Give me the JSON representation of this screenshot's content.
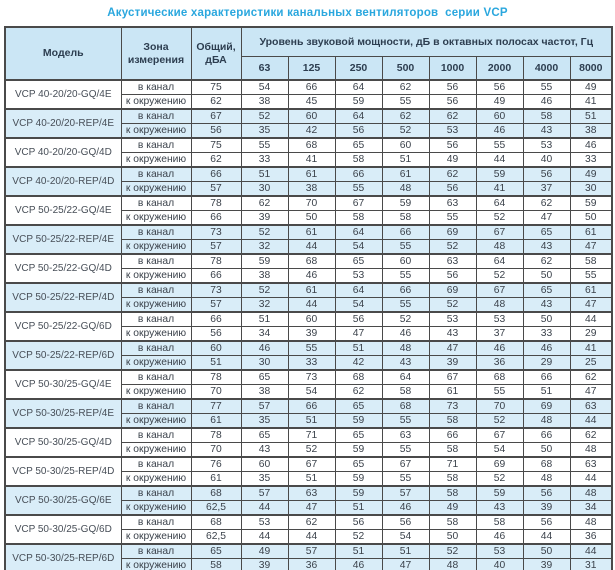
{
  "title": "Акустические характеристики канальных вентиляторов  серии VCP",
  "colors": {
    "title": "#2aa7de",
    "header_bg": "#cbe6f5",
    "highlight_row_bg": "#d9edf8",
    "border": "#4a4a4a"
  },
  "table": {
    "headers": {
      "model": "Модель",
      "zone": "Зона\nизмерения",
      "total": "Общий,\nдБА",
      "band_group": "Уровень звуковой мощности, дБ в октавных полосах частот, Гц",
      "frequencies": [
        "63",
        "125",
        "250",
        "500",
        "1000",
        "2000",
        "4000",
        "8000"
      ]
    },
    "zone_labels": {
      "duct": "в канал",
      "ambient": "к окружению"
    },
    "rows": [
      {
        "model": "VCP 40-20/20-GQ/4E",
        "highlight": false,
        "duct": {
          "total": "75",
          "bands": [
            "54",
            "66",
            "64",
            "62",
            "56",
            "56",
            "55",
            "49"
          ]
        },
        "ambient": {
          "total": "62",
          "bands": [
            "38",
            "45",
            "59",
            "55",
            "56",
            "49",
            "46",
            "41"
          ]
        }
      },
      {
        "model": "VCP 40-20/20-REP/4E",
        "highlight": true,
        "duct": {
          "total": "67",
          "bands": [
            "52",
            "60",
            "64",
            "62",
            "62",
            "60",
            "58",
            "51"
          ]
        },
        "ambient": {
          "total": "56",
          "bands": [
            "35",
            "42",
            "56",
            "52",
            "53",
            "46",
            "43",
            "38"
          ]
        }
      },
      {
        "model": "VCP 40-20/20-GQ/4D",
        "highlight": false,
        "duct": {
          "total": "75",
          "bands": [
            "55",
            "68",
            "65",
            "60",
            "56",
            "55",
            "53",
            "46"
          ]
        },
        "ambient": {
          "total": "62",
          "bands": [
            "33",
            "41",
            "58",
            "51",
            "49",
            "44",
            "40",
            "33"
          ]
        }
      },
      {
        "model": "VCP 40-20/20-REP/4D",
        "highlight": true,
        "duct": {
          "total": "66",
          "bands": [
            "51",
            "61",
            "66",
            "61",
            "62",
            "59",
            "56",
            "49"
          ]
        },
        "ambient": {
          "total": "57",
          "bands": [
            "30",
            "38",
            "55",
            "48",
            "56",
            "41",
            "37",
            "30"
          ]
        }
      },
      {
        "model": "VCP 50-25/22-GQ/4E",
        "highlight": false,
        "duct": {
          "total": "78",
          "bands": [
            "62",
            "70",
            "67",
            "59",
            "63",
            "64",
            "62",
            "59"
          ]
        },
        "ambient": {
          "total": "66",
          "bands": [
            "39",
            "50",
            "58",
            "58",
            "55",
            "52",
            "47",
            "50"
          ]
        }
      },
      {
        "model": "VCP 50-25/22-REP/4E",
        "highlight": true,
        "duct": {
          "total": "73",
          "bands": [
            "52",
            "61",
            "64",
            "66",
            "69",
            "67",
            "65",
            "61"
          ]
        },
        "ambient": {
          "total": "57",
          "bands": [
            "32",
            "44",
            "54",
            "55",
            "52",
            "48",
            "43",
            "47"
          ]
        }
      },
      {
        "model": "VCP 50-25/22-GQ/4D",
        "highlight": false,
        "duct": {
          "total": "78",
          "bands": [
            "59",
            "68",
            "65",
            "60",
            "63",
            "64",
            "62",
            "58"
          ]
        },
        "ambient": {
          "total": "66",
          "bands": [
            "38",
            "46",
            "53",
            "55",
            "56",
            "52",
            "50",
            "55"
          ]
        }
      },
      {
        "model": "VCP 50-25/22-REP/4D",
        "highlight": true,
        "duct": {
          "total": "73",
          "bands": [
            "52",
            "61",
            "64",
            "66",
            "69",
            "67",
            "65",
            "61"
          ]
        },
        "ambient": {
          "total": "57",
          "bands": [
            "32",
            "44",
            "54",
            "55",
            "52",
            "48",
            "43",
            "47"
          ]
        }
      },
      {
        "model": "VCP 50-25/22-GQ/6D",
        "highlight": false,
        "duct": {
          "total": "66",
          "bands": [
            "51",
            "60",
            "56",
            "52",
            "53",
            "53",
            "50",
            "44"
          ]
        },
        "ambient": {
          "total": "56",
          "bands": [
            "34",
            "39",
            "47",
            "46",
            "43",
            "37",
            "33",
            "29"
          ]
        }
      },
      {
        "model": "VCP 50-25/22-REP/6D",
        "highlight": true,
        "duct": {
          "total": "60",
          "bands": [
            "46",
            "55",
            "51",
            "48",
            "47",
            "46",
            "46",
            "41"
          ]
        },
        "ambient": {
          "total": "51",
          "bands": [
            "30",
            "33",
            "42",
            "43",
            "39",
            "36",
            "29",
            "25"
          ]
        }
      },
      {
        "model": "VCP 50-30/25-GQ/4E",
        "highlight": false,
        "duct": {
          "total": "78",
          "bands": [
            "65",
            "73",
            "68",
            "64",
            "67",
            "68",
            "66",
            "62"
          ]
        },
        "ambient": {
          "total": "70",
          "bands": [
            "38",
            "54",
            "62",
            "58",
            "61",
            "55",
            "51",
            "47"
          ]
        }
      },
      {
        "model": "VCP 50-30/25-REP/4E",
        "highlight": true,
        "duct": {
          "total": "77",
          "bands": [
            "57",
            "66",
            "65",
            "68",
            "73",
            "70",
            "69",
            "63"
          ]
        },
        "ambient": {
          "total": "61",
          "bands": [
            "35",
            "51",
            "59",
            "55",
            "58",
            "52",
            "48",
            "44"
          ]
        }
      },
      {
        "model": "VCP 50-30/25-GQ/4D",
        "highlight": false,
        "duct": {
          "total": "78",
          "bands": [
            "65",
            "71",
            "65",
            "63",
            "66",
            "67",
            "66",
            "62"
          ]
        },
        "ambient": {
          "total": "70",
          "bands": [
            "43",
            "52",
            "59",
            "55",
            "58",
            "54",
            "50",
            "48"
          ]
        }
      },
      {
        "model": "VCP 50-30/25-REP/4D",
        "highlight": false,
        "duct": {
          "total": "76",
          "bands": [
            "60",
            "67",
            "65",
            "67",
            "71",
            "69",
            "68",
            "63"
          ]
        },
        "ambient": {
          "total": "61",
          "bands": [
            "35",
            "51",
            "59",
            "55",
            "58",
            "52",
            "48",
            "44"
          ]
        }
      },
      {
        "model": "VCP 50-30/25-GQ/6E",
        "highlight": true,
        "duct": {
          "total": "68",
          "bands": [
            "57",
            "63",
            "59",
            "57",
            "58",
            "59",
            "56",
            "48"
          ]
        },
        "ambient": {
          "total": "62,5",
          "bands": [
            "44",
            "47",
            "51",
            "46",
            "49",
            "43",
            "39",
            "34"
          ]
        }
      },
      {
        "model": "VCP 50-30/25-GQ/6D",
        "highlight": false,
        "duct": {
          "total": "68",
          "bands": [
            "53",
            "62",
            "56",
            "56",
            "58",
            "58",
            "56",
            "48"
          ]
        },
        "ambient": {
          "total": "62,5",
          "bands": [
            "44",
            "44",
            "52",
            "54",
            "50",
            "46",
            "44",
            "36"
          ]
        }
      },
      {
        "model": "VCP 50-30/25-REP/6D",
        "highlight": true,
        "duct": {
          "total": "65",
          "bands": [
            "49",
            "57",
            "51",
            "51",
            "52",
            "53",
            "50",
            "44"
          ]
        },
        "ambient": {
          "total": "58",
          "bands": [
            "39",
            "36",
            "46",
            "47",
            "48",
            "40",
            "39",
            "31"
          ]
        }
      }
    ]
  }
}
